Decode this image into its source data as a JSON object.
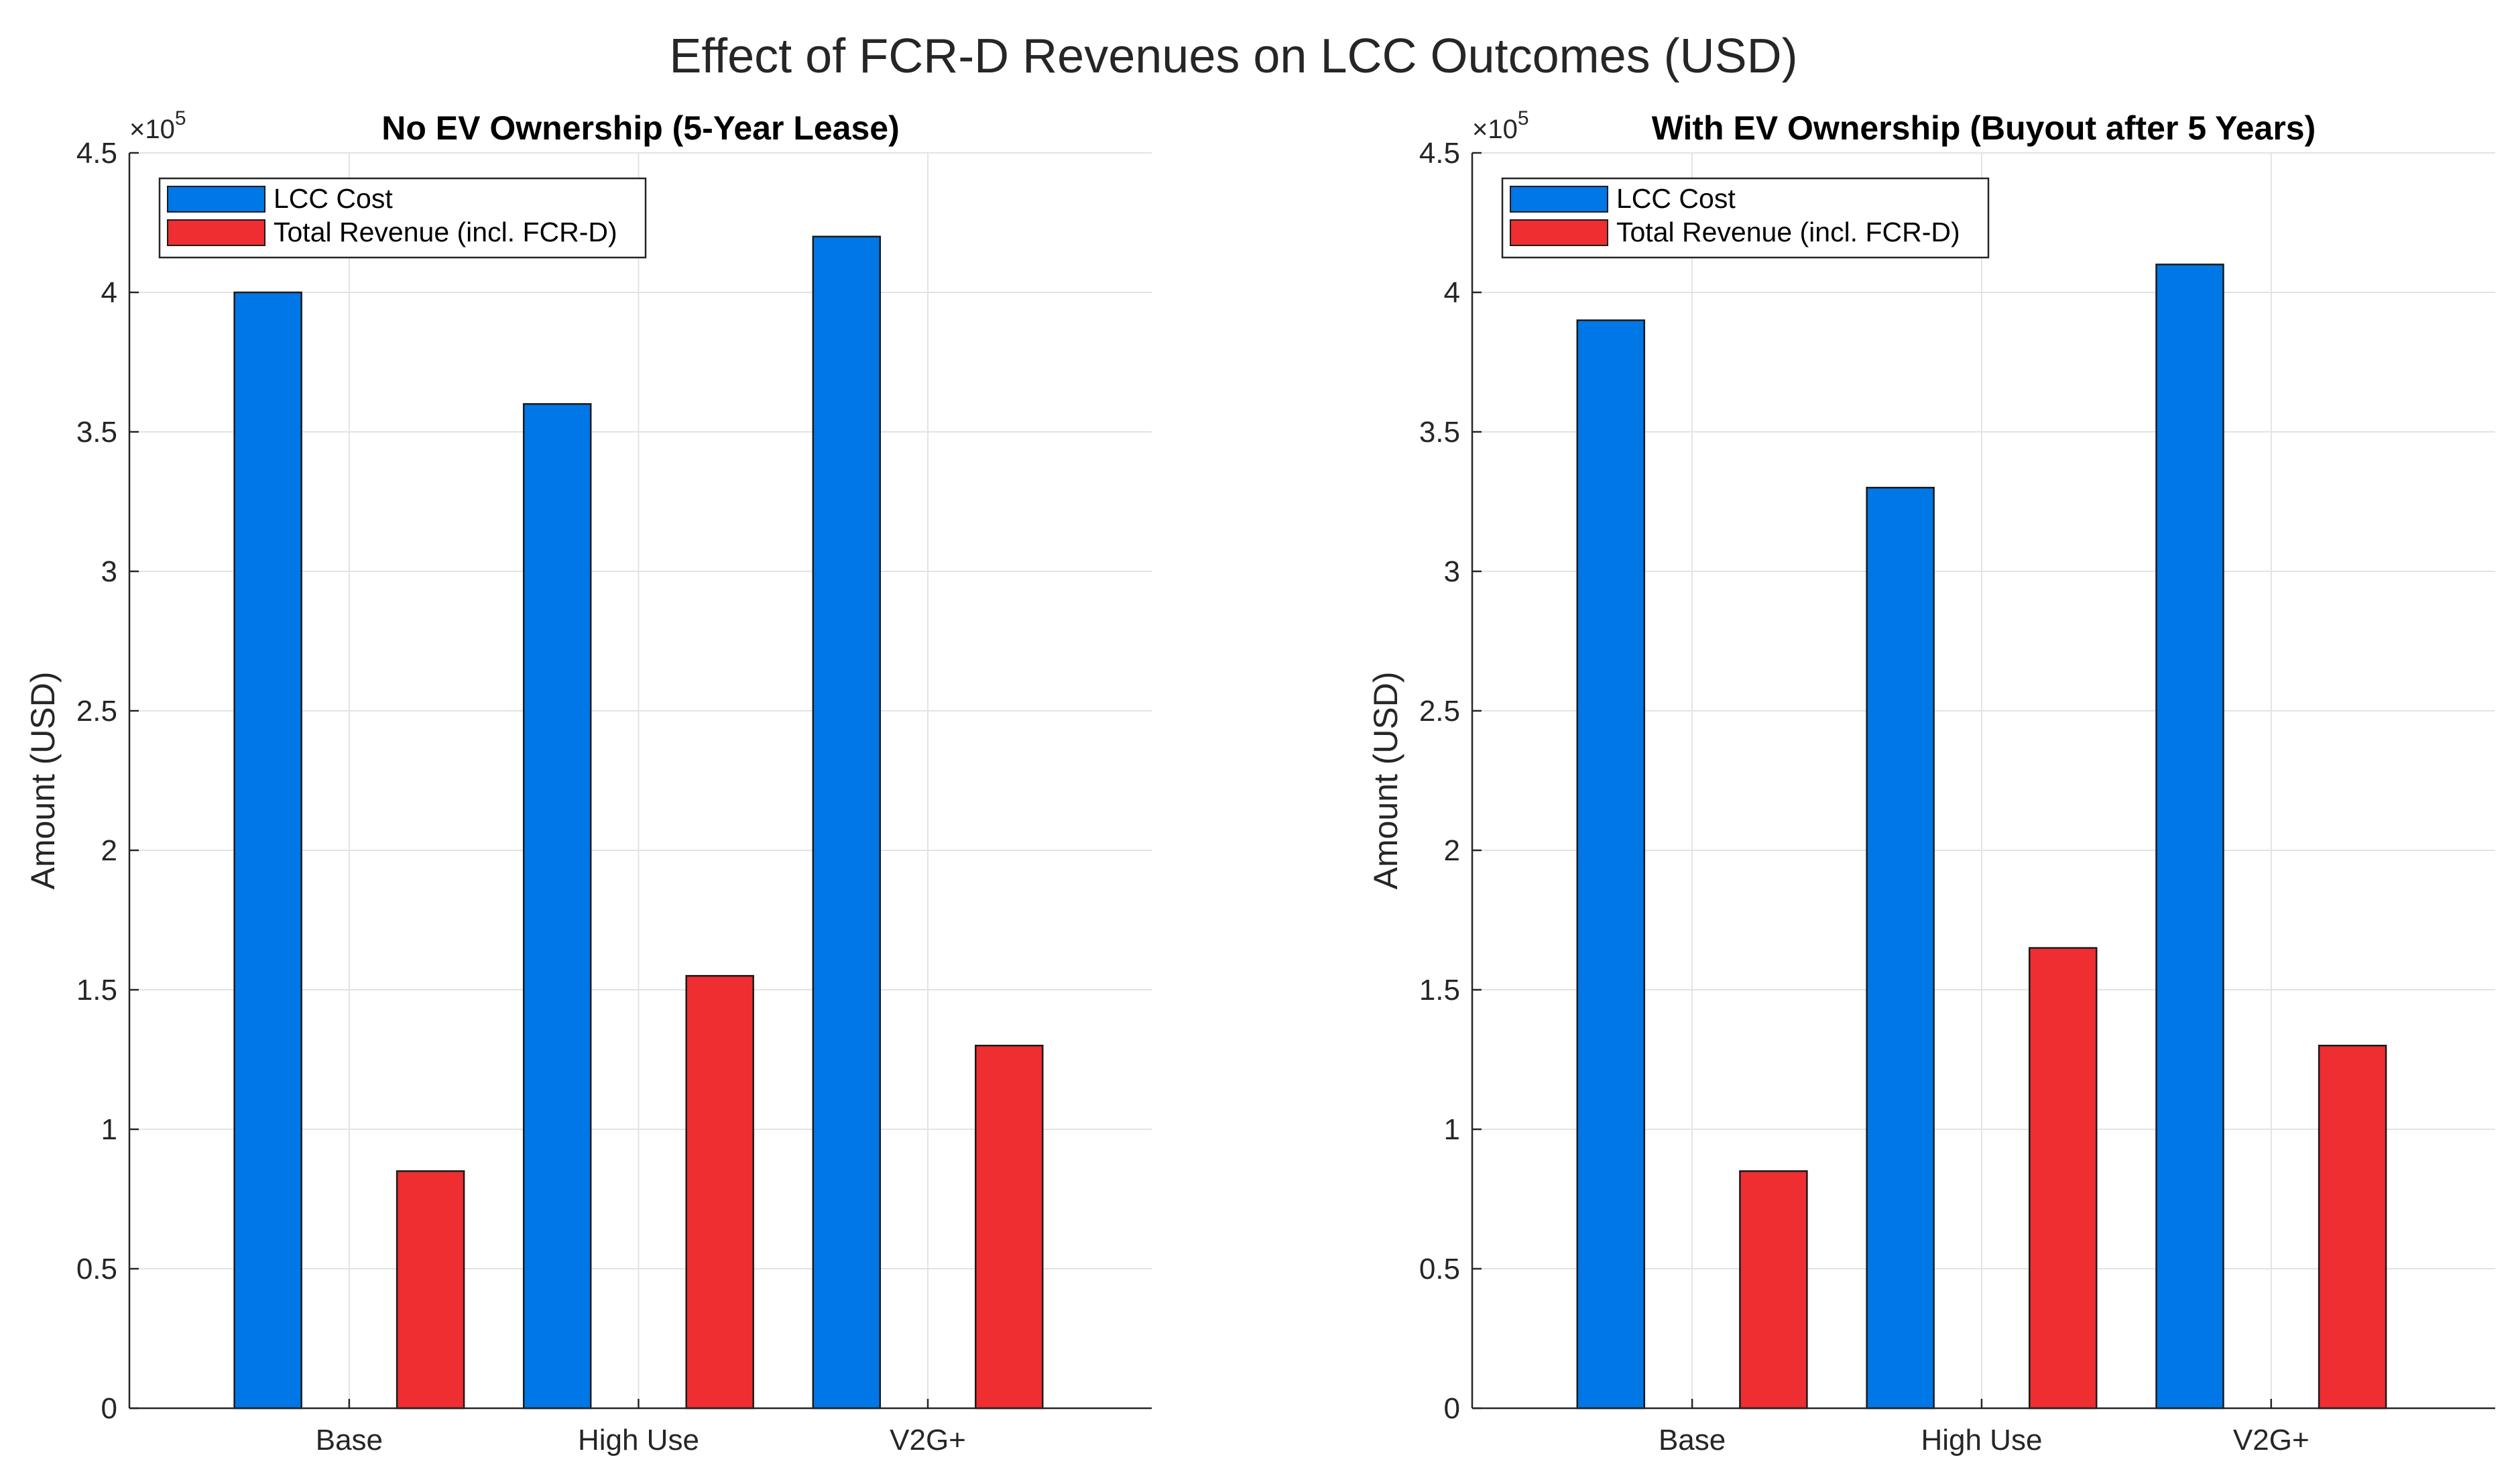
{
  "figure": {
    "suptitle": "Effect of FCR-D Revenues on LCC Outcomes (USD)"
  },
  "colors": {
    "lcc_cost": "#0077E6",
    "total_revenue": "#EE2E31",
    "bar_edge": "#1a1a1a",
    "grid": "#e3e3e3",
    "axis": "#262626"
  },
  "chart_data": [
    {
      "type": "bar",
      "title": "No EV Ownership (5-Year Lease)",
      "xlabel": "",
      "ylabel": "Amount (USD)",
      "y_exponent": "×10",
      "y_exponent_power": "5",
      "categories": [
        "Base",
        "High Use",
        "V2G+"
      ],
      "series": [
        {
          "name": "LCC Cost",
          "values": [
            400000,
            360000,
            420000
          ]
        },
        {
          "name": "Total Revenue (incl. FCR-D)",
          "values": [
            85000,
            155000,
            130000
          ]
        }
      ],
      "ylim": [
        0,
        450000
      ],
      "yticks": [
        0,
        50000,
        100000,
        150000,
        200000,
        250000,
        300000,
        350000,
        400000,
        450000
      ],
      "ytick_labels": [
        "0",
        "0.5",
        "1",
        "1.5",
        "2",
        "2.5",
        "3",
        "3.5",
        "4",
        "4.5"
      ],
      "grid": true,
      "legend_position": "top-left"
    },
    {
      "type": "bar",
      "title": "With EV Ownership (Buyout after 5 Years)",
      "xlabel": "",
      "ylabel": "Amount (USD)",
      "y_exponent": "×10",
      "y_exponent_power": "5",
      "categories": [
        "Base",
        "High Use",
        "V2G+"
      ],
      "series": [
        {
          "name": "LCC Cost",
          "values": [
            390000,
            330000,
            410000
          ]
        },
        {
          "name": "Total Revenue (incl. FCR-D)",
          "values": [
            85000,
            165000,
            130000
          ]
        }
      ],
      "ylim": [
        0,
        450000
      ],
      "yticks": [
        0,
        50000,
        100000,
        150000,
        200000,
        250000,
        300000,
        350000,
        400000,
        450000
      ],
      "ytick_labels": [
        "0",
        "0.5",
        "1",
        "1.5",
        "2",
        "2.5",
        "3",
        "3.5",
        "4",
        "4.5"
      ],
      "grid": true,
      "legend_position": "top-left"
    }
  ]
}
